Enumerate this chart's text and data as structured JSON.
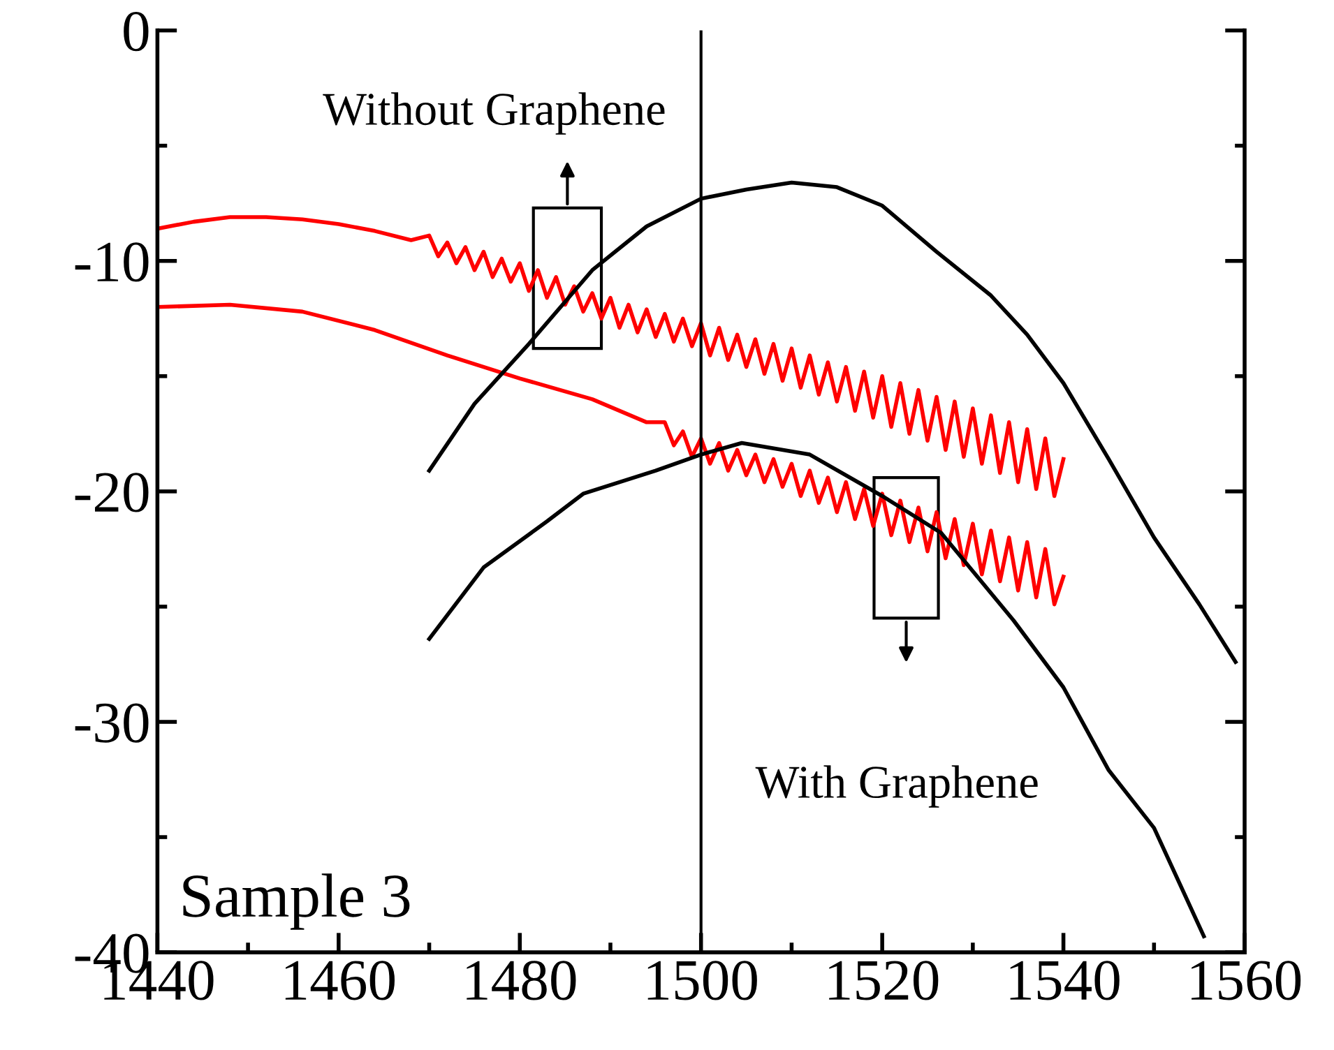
{
  "chart_data": {
    "type": "line",
    "xlim": [
      1440,
      1560
    ],
    "ylim": [
      -40,
      0
    ],
    "xticks": [
      1440,
      1460,
      1480,
      1500,
      1520,
      1540,
      1560
    ],
    "yticks": [
      0,
      -10,
      -20,
      -30,
      -40
    ],
    "grid": false,
    "legend": false,
    "marker": "none",
    "line_style": "solid",
    "ref_lines": [
      {
        "axis": "x",
        "value": 1500,
        "color": "#000000"
      }
    ],
    "annotations": [
      "Without Graphene",
      "With Graphene",
      "Sample 3"
    ],
    "series": [
      {
        "color": "#ff0000",
        "x": [
          1440,
          1444,
          1448,
          1452,
          1456,
          1460,
          1464,
          1468,
          1470,
          1471,
          1472,
          1473,
          1474,
          1475,
          1476,
          1477,
          1478,
          1479,
          1480,
          1481,
          1482,
          1483,
          1484,
          1485,
          1486,
          1487,
          1488,
          1489,
          1490,
          1491,
          1492,
          1493,
          1494,
          1495,
          1496,
          1497,
          1498,
          1499,
          1500,
          1501,
          1502,
          1503,
          1504,
          1505,
          1506,
          1507,
          1508,
          1509,
          1510,
          1511,
          1512,
          1513,
          1514,
          1515,
          1516,
          1517,
          1518,
          1519,
          1520,
          1521,
          1522,
          1523,
          1524,
          1525,
          1526,
          1527,
          1528,
          1529,
          1530,
          1531,
          1532,
          1533,
          1534,
          1535,
          1536,
          1537,
          1538,
          1539,
          1540
        ],
        "values": [
          -8.6,
          -8.3,
          -8.1,
          -8.1,
          -8.2,
          -8.4,
          -8.7,
          -9.1,
          -8.9,
          -9.8,
          -9.2,
          -10.1,
          -9.4,
          -10.4,
          -9.6,
          -10.7,
          -9.9,
          -10.9,
          -10.1,
          -11.3,
          -10.4,
          -11.6,
          -10.7,
          -11.9,
          -11.1,
          -12.2,
          -11.4,
          -12.5,
          -11.6,
          -12.9,
          -11.9,
          -13.1,
          -12.1,
          -13.3,
          -12.3,
          -13.5,
          -12.5,
          -13.7,
          -12.7,
          -14.1,
          -12.9,
          -14.3,
          -13.2,
          -14.6,
          -13.4,
          -14.9,
          -13.6,
          -15.2,
          -13.8,
          -15.5,
          -14.1,
          -15.8,
          -14.4,
          -16.1,
          -14.6,
          -16.5,
          -14.8,
          -16.8,
          -15.0,
          -17.2,
          -15.3,
          -17.5,
          -15.6,
          -17.8,
          -15.9,
          -18.2,
          -16.1,
          -18.5,
          -16.4,
          -18.8,
          -16.7,
          -19.2,
          -17.0,
          -19.6,
          -17.3,
          -19.9,
          -17.7,
          -20.2,
          -18.6
        ]
      },
      {
        "color": "#ff0000",
        "x": [
          1440,
          1448,
          1456,
          1464,
          1472,
          1480,
          1488,
          1494,
          1496,
          1497,
          1498,
          1499,
          1500,
          1501,
          1502,
          1503,
          1504,
          1505,
          1506,
          1507,
          1508,
          1509,
          1510,
          1511,
          1512,
          1513,
          1514,
          1515,
          1516,
          1517,
          1518,
          1519,
          1520,
          1521,
          1522,
          1523,
          1524,
          1525,
          1526,
          1527,
          1528,
          1529,
          1530,
          1531,
          1532,
          1533,
          1534,
          1535,
          1536,
          1537,
          1538,
          1539,
          1540
        ],
        "values": [
          -12.0,
          -11.9,
          -12.2,
          -13.0,
          -14.1,
          -15.1,
          -16.0,
          -17.0,
          -17.0,
          -18.0,
          -17.4,
          -18.5,
          -17.7,
          -18.8,
          -17.9,
          -19.1,
          -18.2,
          -19.3,
          -18.4,
          -19.6,
          -18.6,
          -19.8,
          -18.8,
          -20.2,
          -19.1,
          -20.5,
          -19.4,
          -20.9,
          -19.6,
          -21.2,
          -19.9,
          -21.5,
          -20.1,
          -21.9,
          -20.4,
          -22.2,
          -20.7,
          -22.6,
          -20.9,
          -22.9,
          -21.2,
          -23.2,
          -21.4,
          -23.6,
          -21.7,
          -23.9,
          -22.0,
          -24.3,
          -22.2,
          -24.6,
          -22.5,
          -24.9,
          -23.7
        ]
      },
      {
        "color": "#000000",
        "x": [
          1470,
          1475,
          1481,
          1488,
          1494,
          1500,
          1505,
          1510,
          1515,
          1520,
          1526,
          1532,
          1536,
          1540,
          1545,
          1550,
          1555,
          1559
        ],
        "values": [
          -19.1,
          -16.2,
          -13.6,
          -10.4,
          -8.5,
          -7.3,
          -6.9,
          -6.6,
          -6.8,
          -7.6,
          -9.6,
          -11.5,
          -13.2,
          -15.3,
          -18.6,
          -22.0,
          -24.9,
          -27.4
        ]
      },
      {
        "color": "#000000",
        "x": [
          1470,
          1476,
          1483,
          1487,
          1495,
          1500,
          1504.5,
          1512,
          1520,
          1526.5,
          1534.5,
          1540,
          1545,
          1550,
          1555.5
        ],
        "values": [
          -26.4,
          -23.3,
          -21.3,
          -20.1,
          -19.1,
          -18.4,
          -17.9,
          -18.4,
          -20.2,
          -21.8,
          -25.6,
          -28.5,
          -32.1,
          -34.6,
          -39.3
        ]
      }
    ]
  }
}
